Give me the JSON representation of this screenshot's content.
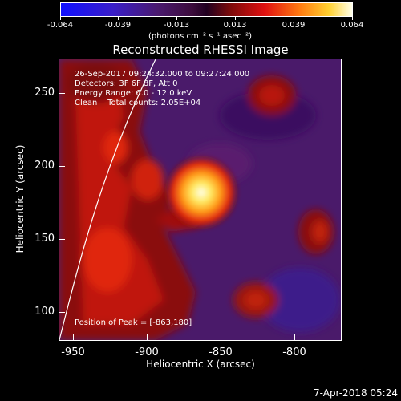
{
  "colorbar": {
    "tick_labels": [
      "-0.064",
      "-0.039",
      "-0.013",
      "0.013",
      "0.039",
      "0.064"
    ],
    "units": "(photons cm⁻² s⁻¹ asec⁻²)",
    "range": [
      -0.064,
      0.064
    ]
  },
  "title": "Reconstructed RHESSI Image",
  "info": {
    "time_range": "26-Sep-2017 09:24:32.000 to 09:27:24.000",
    "detectors": "Detectors: 3F 6F 8F, Att 0",
    "energy": "Energy Range: 6.0 - 12.0 keV",
    "clean": "Clean    Total counts: 2.05E+04",
    "peak": "Position of Peak = [-863,180]"
  },
  "axes": {
    "xlabel": "Heliocentric X (arcsec)",
    "ylabel": "Heliocentric Y (arcsec)",
    "x_ticks": [
      "-950",
      "-900",
      "-850",
      "-800"
    ],
    "y_ticks": [
      "250",
      "200",
      "150",
      "100"
    ],
    "x_range": [
      -960,
      -775
    ],
    "y_range": [
      80,
      280
    ]
  },
  "peak_position": [
    -863,
    180
  ],
  "timestamp": "7-Apr-2018 05:24",
  "colors": {
    "background": "#000000",
    "foreground": "#ffffff",
    "limb_line": "#ffffff"
  }
}
